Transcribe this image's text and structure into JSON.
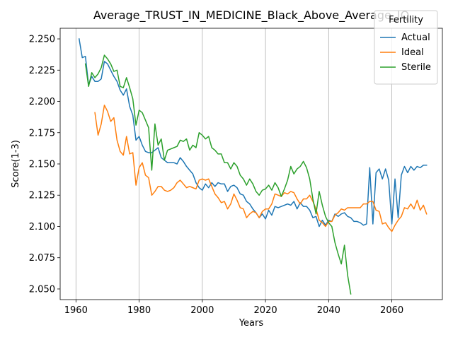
{
  "chart_data": {
    "type": "line",
    "title": "Average_TRUST_IN_MEDICINE_Black_Above_Average_IQ",
    "xlabel": "Years",
    "ylabel": "Score(1-3)",
    "xlim": [
      1955,
      2076
    ],
    "ylim": [
      2.0415,
      2.2585
    ],
    "xticks": [
      1960,
      1980,
      2000,
      2020,
      2040,
      2060
    ],
    "xtick_labels": [
      "1960",
      "1980",
      "2000",
      "2020",
      "2040",
      "2060"
    ],
    "yticks": [
      2.05,
      2.075,
      2.1,
      2.125,
      2.15,
      2.175,
      2.2,
      2.225,
      2.25
    ],
    "ytick_labels": [
      "2.050",
      "2.075",
      "2.100",
      "2.125",
      "2.150",
      "2.175",
      "2.200",
      "2.225",
      "2.250"
    ],
    "grid": "x-only",
    "legend": {
      "title": "Fertility",
      "position": "top-right"
    },
    "series": [
      {
        "name": "Actual",
        "color": "#1f77b4",
        "x_start": 1961,
        "values": [
          2.25,
          2.235,
          2.236,
          2.213,
          2.22,
          2.216,
          2.216,
          2.218,
          2.232,
          2.23,
          2.225,
          2.22,
          2.216,
          2.209,
          2.205,
          2.21,
          2.196,
          2.189,
          2.169,
          2.172,
          2.165,
          2.16,
          2.159,
          2.159,
          2.161,
          2.163,
          2.155,
          2.153,
          2.151,
          2.151,
          2.151,
          2.15,
          2.155,
          2.152,
          2.148,
          2.145,
          2.142,
          2.135,
          2.131,
          2.129,
          2.134,
          2.131,
          2.135,
          2.132,
          2.135,
          2.134,
          2.134,
          2.128,
          2.132,
          2.133,
          2.131,
          2.126,
          2.125,
          2.12,
          2.118,
          2.114,
          2.111,
          2.107,
          2.11,
          2.106,
          2.113,
          2.109,
          2.116,
          2.115,
          2.116,
          2.117,
          2.118,
          2.117,
          2.12,
          2.114,
          2.119,
          2.116,
          2.116,
          2.113,
          2.107,
          2.108,
          2.1,
          2.105,
          2.101,
          2.105,
          2.104,
          2.11,
          2.108,
          2.11,
          2.111,
          2.108,
          2.107,
          2.104,
          2.104,
          2.103,
          2.101,
          2.102,
          2.147,
          2.102,
          2.143,
          2.146,
          2.138,
          2.146,
          2.137,
          2.102,
          2.138,
          2.107,
          2.141,
          2.148,
          2.143,
          2.148,
          2.145,
          2.148,
          2.147,
          2.149,
          2.149
        ]
      },
      {
        "name": "Ideal",
        "color": "#ff7f0e",
        "x_start": 1966,
        "values": [
          2.191,
          2.173,
          2.182,
          2.197,
          2.192,
          2.184,
          2.187,
          2.169,
          2.16,
          2.157,
          2.172,
          2.158,
          2.159,
          2.133,
          2.147,
          2.151,
          2.141,
          2.139,
          2.125,
          2.128,
          2.132,
          2.132,
          2.129,
          2.128,
          2.129,
          2.131,
          2.135,
          2.137,
          2.134,
          2.131,
          2.132,
          2.131,
          2.13,
          2.137,
          2.138,
          2.137,
          2.138,
          2.132,
          2.126,
          2.123,
          2.119,
          2.12,
          2.114,
          2.118,
          2.126,
          2.121,
          2.115,
          2.114,
          2.107,
          2.11,
          2.112,
          2.111,
          2.107,
          2.112,
          2.114,
          2.114,
          2.118,
          2.126,
          2.125,
          2.124,
          2.127,
          2.126,
          2.128,
          2.127,
          2.122,
          2.118,
          2.122,
          2.122,
          2.125,
          2.12,
          2.114,
          2.105,
          2.103,
          2.1,
          2.104,
          2.104,
          2.109,
          2.111,
          2.114,
          2.113,
          2.115,
          2.115,
          2.115,
          2.115,
          2.115,
          2.118,
          2.118,
          2.12,
          2.12,
          2.113,
          2.112,
          2.102,
          2.103,
          2.099,
          2.096,
          2.101,
          2.105,
          2.108,
          2.115,
          2.114,
          2.118,
          2.114,
          2.121,
          2.113,
          2.117,
          2.11
        ]
      },
      {
        "name": "Sterile",
        "color": "#2ca02c",
        "x_start": 1963,
        "values": [
          2.23,
          2.212,
          2.223,
          2.219,
          2.222,
          2.227,
          2.237,
          2.234,
          2.23,
          2.224,
          2.225,
          2.212,
          2.211,
          2.219,
          2.211,
          2.202,
          2.181,
          2.193,
          2.191,
          2.185,
          2.179,
          2.145,
          2.182,
          2.165,
          2.17,
          2.153,
          2.161,
          2.162,
          2.163,
          2.164,
          2.169,
          2.168,
          2.17,
          2.161,
          2.165,
          2.163,
          2.175,
          2.173,
          2.17,
          2.172,
          2.163,
          2.161,
          2.158,
          2.158,
          2.151,
          2.151,
          2.146,
          2.151,
          2.148,
          2.141,
          2.138,
          2.133,
          2.138,
          2.134,
          2.128,
          2.125,
          2.129,
          2.13,
          2.133,
          2.129,
          2.135,
          2.131,
          2.124,
          2.13,
          2.137,
          2.148,
          2.142,
          2.146,
          2.148,
          2.152,
          2.147,
          2.138,
          2.122,
          2.11,
          2.128,
          2.117,
          2.108,
          2.103,
          2.1,
          2.087,
          2.078,
          2.07,
          2.085,
          2.061,
          2.046
        ]
      }
    ]
  }
}
